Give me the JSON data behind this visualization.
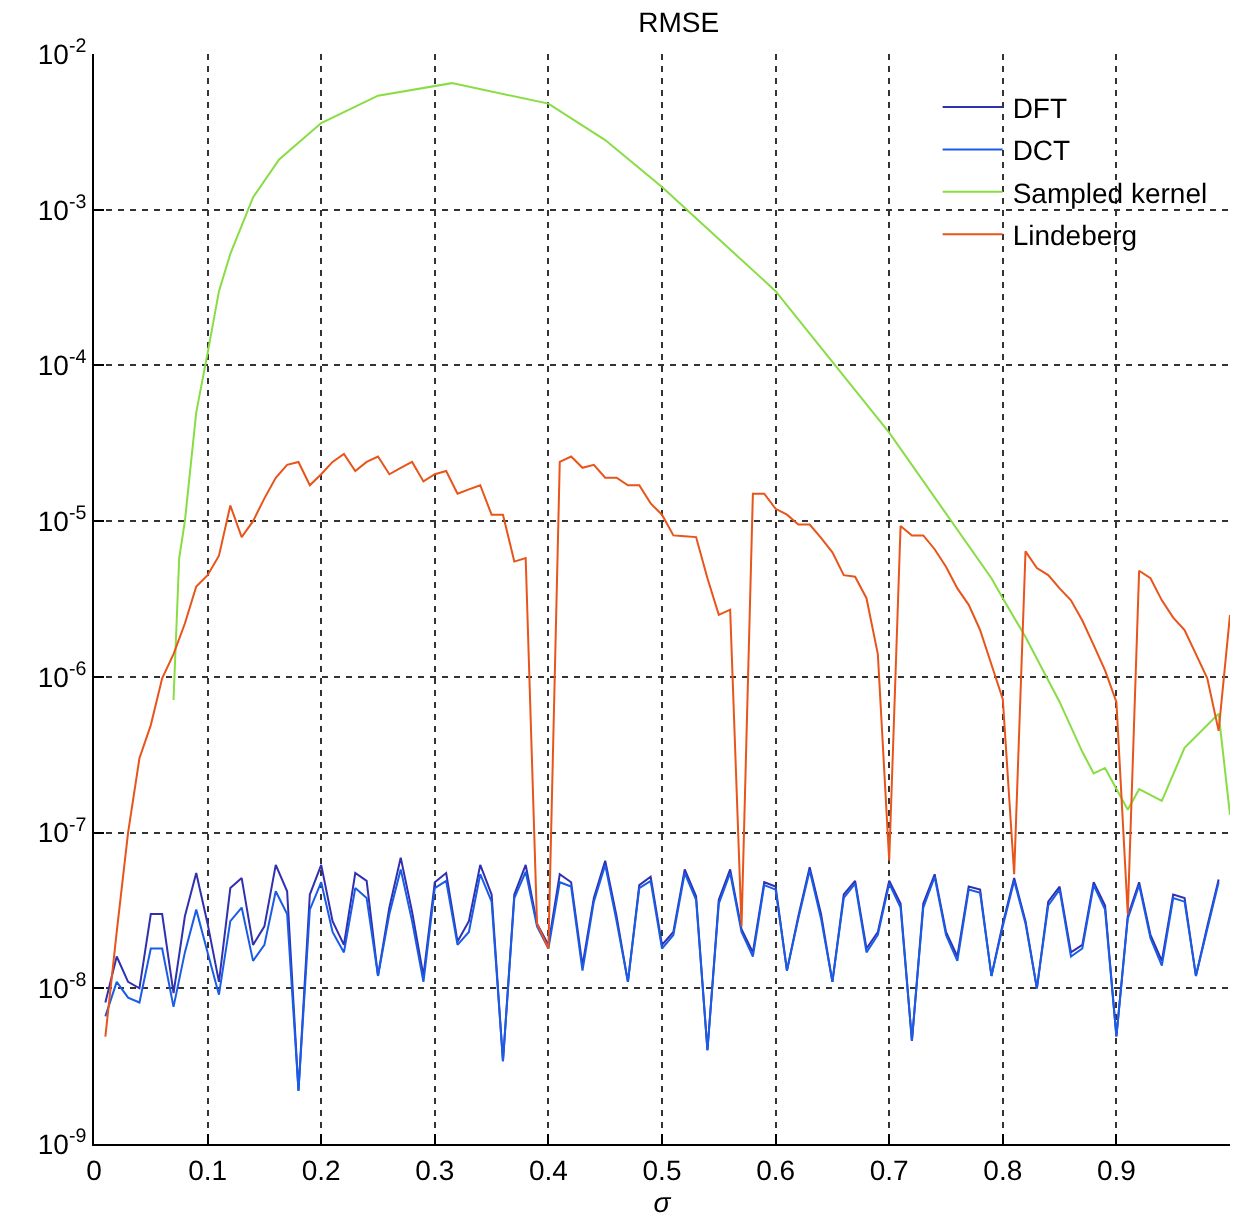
{
  "chart_data": {
    "type": "line",
    "title": "RMSE",
    "xlabel": "σ",
    "x": [
      0.01,
      0.02,
      0.03,
      0.04,
      0.05,
      0.06,
      0.07,
      0.08,
      0.09,
      0.1,
      0.11,
      0.12,
      0.13,
      0.14,
      0.15,
      0.16,
      0.17,
      0.18,
      0.19,
      0.2,
      0.21,
      0.22,
      0.23,
      0.24,
      0.25,
      0.26,
      0.27,
      0.28,
      0.29,
      0.3,
      0.31,
      0.32,
      0.33,
      0.34,
      0.35,
      0.36,
      0.37,
      0.38,
      0.39,
      0.4,
      0.41,
      0.42,
      0.43,
      0.44,
      0.45,
      0.46,
      0.47,
      0.48,
      0.49,
      0.5,
      0.51,
      0.52,
      0.53,
      0.54,
      0.55,
      0.56,
      0.57,
      0.58,
      0.59,
      0.6,
      0.61,
      0.62,
      0.63,
      0.64,
      0.65,
      0.66,
      0.67,
      0.68,
      0.69,
      0.7,
      0.71,
      0.72,
      0.73,
      0.74,
      0.75,
      0.76,
      0.77,
      0.78,
      0.79,
      0.8,
      0.81,
      0.82,
      0.83,
      0.84,
      0.85,
      0.86,
      0.87,
      0.88,
      0.89,
      0.9,
      0.91,
      0.92,
      0.93,
      0.94,
      0.95,
      0.96,
      0.97,
      0.98,
      0.99
    ],
    "series": [
      {
        "name": "DFT",
        "color": "#3030b0",
        "values": [
          8.1e-09,
          1.6e-08,
          1.1e-08,
          1e-08,
          3e-08,
          3e-08,
          9.3e-09,
          2.9e-08,
          5.5e-08,
          2.6e-08,
          1.1e-08,
          4.4e-08,
          5.1e-08,
          1.9e-08,
          2.5e-08,
          6.2e-08,
          4.2e-08,
          2.2e-09,
          4e-08,
          6.2e-08,
          2.7e-08,
          1.9e-08,
          5.5e-08,
          4.9e-08,
          1.2e-08,
          3.3e-08,
          6.9e-08,
          3.1e-08,
          1.2e-08,
          4.8e-08,
          5.5e-08,
          2e-08,
          2.7e-08,
          6.2e-08,
          4e-08,
          3.4e-09,
          4e-08,
          6.2e-08,
          2.6e-08,
          1.9e-08,
          5.4e-08,
          4.8e-08,
          1.4e-08,
          3.8e-08,
          6.6e-08,
          2.9e-08,
          1.1e-08,
          4.6e-08,
          5.2e-08,
          1.9e-08,
          2.3e-08,
          5.8e-08,
          3.9e-08,
          4e-09,
          3.7e-08,
          5.8e-08,
          2.4e-08,
          1.7e-08,
          4.8e-08,
          4.5e-08,
          1.3e-08,
          2.9e-08,
          6e-08,
          3e-08,
          1.1e-08,
          4e-08,
          4.9e-08,
          1.8e-08,
          2.3e-08,
          4.9e-08,
          3.5e-08,
          4.6e-09,
          3.5e-08,
          5.4e-08,
          2.3e-08,
          1.6e-08,
          4.5e-08,
          4.3e-08,
          1.2e-08,
          2.6e-08,
          5.1e-08,
          2.7e-08,
          1e-08,
          3.6e-08,
          4.5e-08,
          1.7e-08,
          1.9e-08,
          4.8e-08,
          3.4e-08,
          4.9e-09,
          2.9e-08,
          4.8e-08,
          2.2e-08,
          1.5e-08,
          4e-08,
          3.8e-08,
          1.2e-08,
          2.5e-08,
          5e-08
        ]
      },
      {
        "name": "DCT",
        "color": "#1a5ce6",
        "values": [
          6.6e-09,
          1.1e-08,
          8.7e-09,
          8.1e-09,
          1.8e-08,
          1.8e-08,
          7.6e-09,
          1.7e-08,
          3.2e-08,
          1.7e-08,
          9.1e-09,
          2.7e-08,
          3.3e-08,
          1.5e-08,
          1.9e-08,
          4.2e-08,
          3e-08,
          2.2e-09,
          3.2e-08,
          4.8e-08,
          2.3e-08,
          1.7e-08,
          4.4e-08,
          3.8e-08,
          1.2e-08,
          3e-08,
          5.8e-08,
          2.7e-08,
          1.1e-08,
          4.4e-08,
          4.9e-08,
          1.9e-08,
          2.3e-08,
          5.4e-08,
          3.6e-08,
          3.4e-09,
          3.8e-08,
          5.6e-08,
          2.5e-08,
          1.8e-08,
          4.8e-08,
          4.5e-08,
          1.3e-08,
          3.6e-08,
          6.2e-08,
          2.7e-08,
          1.1e-08,
          4.4e-08,
          4.9e-08,
          1.8e-08,
          2.2e-08,
          5.5e-08,
          3.7e-08,
          4e-09,
          3.5e-08,
          5.5e-08,
          2.3e-08,
          1.6e-08,
          4.6e-08,
          4.3e-08,
          1.3e-08,
          2.8e-08,
          5.7e-08,
          2.8e-08,
          1.1e-08,
          3.8e-08,
          4.7e-08,
          1.7e-08,
          2.2e-08,
          4.7e-08,
          3.3e-08,
          4.6e-09,
          3.3e-08,
          5.2e-08,
          2.2e-08,
          1.5e-08,
          4.3e-08,
          4.1e-08,
          1.2e-08,
          2.5e-08,
          4.9e-08,
          2.6e-08,
          1e-08,
          3.4e-08,
          4.3e-08,
          1.6e-08,
          1.8e-08,
          4.6e-08,
          3.2e-08,
          4.9e-09,
          2.8e-08,
          4.6e-08,
          2.1e-08,
          1.4e-08,
          3.8e-08,
          3.6e-08,
          1.2e-08,
          2.4e-08,
          4.8e-08
        ]
      },
      {
        "name": "Sampled kernel",
        "color": "#88dd44",
        "x": [
          0.07,
          0.075,
          0.08,
          0.09,
          0.1,
          0.11,
          0.12,
          0.14,
          0.163,
          0.2,
          0.25,
          0.315,
          0.4,
          0.45,
          0.5,
          0.6,
          0.7,
          0.79,
          0.8,
          0.82,
          0.85,
          0.87,
          0.88,
          0.89,
          0.91,
          0.92,
          0.94,
          0.96,
          0.99,
          1.0
        ],
        "values": [
          7.1e-07,
          5.8e-06,
          1e-05,
          5e-05,
          0.00012,
          0.0003,
          0.00052,
          0.0012,
          0.0021,
          0.0036,
          0.0054,
          0.0065,
          0.0048,
          0.0028,
          0.0014,
          0.0003,
          3.7e-05,
          4.3e-06,
          3.2e-06,
          1.8e-06,
          6.9e-07,
          3.3e-07,
          2.4e-07,
          2.6e-07,
          1.4e-07,
          1.9e-07,
          1.6e-07,
          3.5e-07,
          5.8e-07,
          1.3e-07
        ]
      },
      {
        "name": "Lindeberg",
        "color": "#e8541a",
        "x": [
          0.01,
          0.02,
          0.03,
          0.04,
          0.05,
          0.06,
          0.07,
          0.08,
          0.09,
          0.1,
          0.11,
          0.12,
          0.13,
          0.14,
          0.15,
          0.16,
          0.17,
          0.18,
          0.19,
          0.2,
          0.21,
          0.22,
          0.23,
          0.24,
          0.25,
          0.26,
          0.27,
          0.28,
          0.29,
          0.3,
          0.31,
          0.32,
          0.33,
          0.34,
          0.35,
          0.36,
          0.37,
          0.38,
          0.39,
          0.4,
          0.41,
          0.42,
          0.43,
          0.44,
          0.45,
          0.46,
          0.47,
          0.48,
          0.49,
          0.5,
          0.51,
          0.52,
          0.53,
          0.54,
          0.55,
          0.56,
          0.57,
          0.58,
          0.59,
          0.6,
          0.61,
          0.62,
          0.63,
          0.64,
          0.65,
          0.66,
          0.67,
          0.68,
          0.69,
          0.7,
          0.71,
          0.72,
          0.73,
          0.74,
          0.75,
          0.76,
          0.77,
          0.78,
          0.79,
          0.8,
          0.81,
          0.82,
          0.83,
          0.84,
          0.85,
          0.86,
          0.87,
          0.88,
          0.89,
          0.9,
          0.91,
          0.92,
          0.93,
          0.94,
          0.95,
          0.96,
          0.97,
          0.98,
          0.99,
          1.0
        ],
        "values": [
          4.9e-09,
          2.3e-08,
          1e-07,
          3e-07,
          4.9e-07,
          9.8e-07,
          1.4e-06,
          2.2e-06,
          3.8e-06,
          4.5e-06,
          6e-06,
          1.26e-05,
          7.9e-06,
          1e-05,
          1.4e-05,
          1.9e-05,
          2.3e-05,
          2.4e-05,
          1.7e-05,
          2e-05,
          2.4e-05,
          2.7e-05,
          2.1e-05,
          2.4e-05,
          2.6e-05,
          2e-05,
          2.2e-05,
          2.4e-05,
          1.8e-05,
          2e-05,
          2.1e-05,
          1.5e-05,
          1.6e-05,
          1.7e-05,
          1.1e-05,
          1.1e-05,
          5.5e-06,
          5.8e-06,
          2.6e-08,
          1.8e-08,
          2.4e-05,
          2.6e-05,
          2.2e-05,
          2.3e-05,
          1.9e-05,
          1.9e-05,
          1.7e-05,
          1.7e-05,
          1.3e-05,
          1.1e-05,
          8.1e-06,
          8e-06,
          7.9e-06,
          4.3e-06,
          2.5e-06,
          2.7e-06,
          2.5e-08,
          1.5e-05,
          1.5e-05,
          1.2e-05,
          1.1e-05,
          9.5e-06,
          9.5e-06,
          7.8e-06,
          6.3e-06,
          4.5e-06,
          4.4e-06,
          3.2e-06,
          1.4e-06,
          6.6e-08,
          9.3e-06,
          8.1e-06,
          8.1e-06,
          6.6e-06,
          5.1e-06,
          3.7e-06,
          2.9e-06,
          2e-06,
          1.2e-06,
          7.2e-07,
          5.4e-08,
          6.4e-06,
          5e-06,
          4.5e-06,
          3.7e-06,
          3.1e-06,
          2.3e-06,
          1.6e-06,
          1.1e-06,
          6.9e-07,
          3e-08,
          4.8e-06,
          4.3e-06,
          3.1e-06,
          2.4e-06,
          2e-06,
          1.4e-06,
          9.8e-07,
          4.5e-07,
          2.5e-06
        ]
      }
    ],
    "xlim": [
      0,
      1
    ],
    "xticks": [
      0,
      0.1,
      0.2,
      0.3,
      0.4,
      0.5,
      0.6,
      0.7,
      0.8,
      0.9
    ],
    "ylim": [
      1e-09,
      0.01
    ],
    "yticks": [
      {
        "value": 1e-09,
        "label": "10$^{-9}$"
      },
      {
        "value": 1e-08,
        "label": "10$^{-8}$"
      },
      {
        "value": 1e-07,
        "label": "10$^{-7}$"
      },
      {
        "value": 1e-06,
        "label": "10$^{-6}$"
      },
      {
        "value": 1e-05,
        "label": "10$^{-5}$"
      },
      {
        "value": 0.0001,
        "label": "10$^{-4}$"
      },
      {
        "value": 0.001,
        "label": "10$^{-3}$"
      },
      {
        "value": 0.01,
        "label": "10$^{-2}$"
      }
    ],
    "log": true,
    "grid": true,
    "legend": "top right",
    "marker": "none",
    "line_style": "solid"
  }
}
